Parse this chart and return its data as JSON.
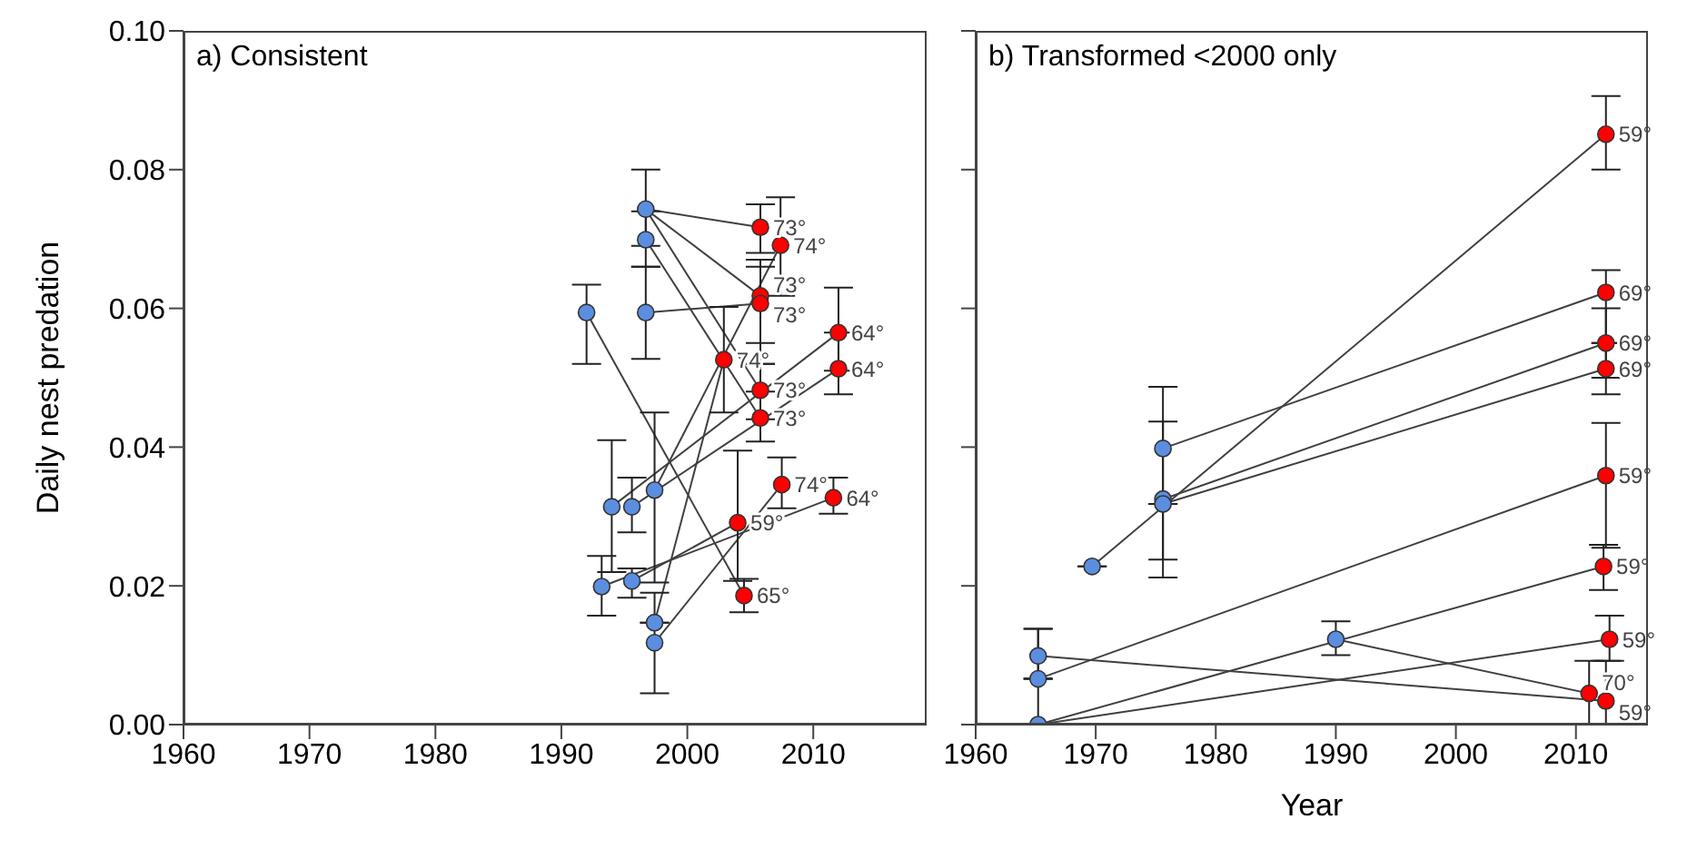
{
  "chart_data": [
    {
      "type": "scatter",
      "title": "a) Consistent",
      "ylabel": "Daily nest predation",
      "xlim": [
        1960,
        2019
      ],
      "xticks": [
        1960,
        1970,
        1980,
        1990,
        2000,
        2010
      ],
      "ylim": [
        0,
        0.1
      ],
      "yticks": [
        {
          "value": 0,
          "label": "0.00"
        },
        {
          "value": 0.02,
          "label": "0.02"
        },
        {
          "value": 0.04,
          "label": "0.04"
        },
        {
          "value": 0.06,
          "label": "0.06"
        },
        {
          "value": 0.08,
          "label": "0.08"
        },
        {
          "value": 0.1,
          "label": "0.10"
        }
      ],
      "series": [
        {
          "type": "line",
          "color": "#404040",
          "x": [
            1992,
            2004.5
          ],
          "values": [
            0.0594,
            0.0186
          ]
        },
        {
          "type": "line",
          "color": "#404040",
          "x": [
            1996.7,
            2005.8
          ],
          "values": [
            0.0743,
            0.0717
          ]
        },
        {
          "type": "line",
          "color": "#404040",
          "x": [
            1996.7,
            2005.8
          ],
          "values": [
            0.0743,
            0.0618
          ]
        },
        {
          "type": "line",
          "color": "#404040",
          "x": [
            1996.7,
            2005.8
          ],
          "values": [
            0.0699,
            0.0442
          ]
        },
        {
          "type": "line",
          "color": "#404040",
          "x": [
            1996.7,
            2005.8
          ],
          "values": [
            0.0743,
            0.0482
          ]
        },
        {
          "type": "line",
          "color": "#404040",
          "x": [
            1996.7,
            2005.8
          ],
          "values": [
            0.0594,
            0.0607
          ]
        },
        {
          "type": "line",
          "color": "#404040",
          "x": [
            1997.4,
            2007.4
          ],
          "values": [
            0.0338,
            0.0691
          ]
        },
        {
          "type": "line",
          "color": "#404040",
          "x": [
            1994,
            2012
          ],
          "values": [
            0.0314,
            0.0565
          ]
        },
        {
          "type": "line",
          "color": "#404040",
          "x": [
            1995.6,
            2012
          ],
          "values": [
            0.0314,
            0.0513
          ]
        },
        {
          "type": "line",
          "color": "#404040",
          "x": [
            1997.4,
            2002.9
          ],
          "values": [
            0.0147,
            0.0526
          ]
        },
        {
          "type": "line",
          "color": "#404040",
          "x": [
            1997.4,
            2007.5
          ],
          "values": [
            0.0118,
            0.0346
          ]
        },
        {
          "type": "line",
          "color": "#404040",
          "x": [
            1993.2,
            2011.6
          ],
          "values": [
            0.0199,
            0.0327
          ]
        },
        {
          "type": "line",
          "color": "#404040",
          "x": [
            1995.6,
            2004
          ],
          "values": [
            0.0207,
            0.0291
          ]
        },
        {
          "type": "scatter",
          "color": "#5b8ee0",
          "x": [
            1992,
            1996.7,
            1996.7,
            1996.7,
            1994,
            1995.6,
            1997.4,
            1993.2,
            1995.6,
            1997.4,
            1997.4
          ],
          "values": [
            0.0594,
            0.0743,
            0.0699,
            0.0594,
            0.0314,
            0.0314,
            0.0338,
            0.0199,
            0.0207,
            0.0147,
            0.0118
          ],
          "errors": [
            [
              0.052,
              0.0634
            ],
            [
              0.069,
              0.08
            ],
            [
              0.066,
              0.074
            ],
            [
              0.0527,
              0.066
            ],
            [
              0.022,
              0.041
            ],
            [
              0.0277,
              0.0356
            ],
            [
              0.0205,
              0.045
            ],
            [
              0.0157,
              0.0243
            ],
            [
              0.0183,
              0.0225
            ],
            null,
            [
              0.0045,
              0.019
            ]
          ]
        },
        {
          "type": "scatter",
          "color": "#ff0000",
          "x": [
            2005.8,
            2007.4,
            2005.8,
            2005.8,
            2002.9,
            2012,
            2012,
            2005.8,
            2005.8,
            2007.5,
            2011.6,
            2004,
            2004.5
          ],
          "values": [
            0.0717,
            0.0691,
            0.0618,
            0.0607,
            0.0526,
            0.0565,
            0.0513,
            0.0482,
            0.0442,
            0.0346,
            0.0327,
            0.0291,
            0.0186
          ],
          "errors": [
            [
              0.068,
              0.075
            ],
            [
              0.0618,
              0.076
            ],
            [
              0.055,
              0.067
            ],
            [
              0.052,
              0.066
            ],
            [
              0.045,
              0.0602
            ],
            [
              0.051,
              0.063
            ],
            [
              0.0476,
              0.0565
            ],
            [
              0.044,
              0.052
            ],
            [
              0.0408,
              0.048
            ],
            [
              0.0312,
              0.0385
            ],
            [
              0.0304,
              0.0356
            ],
            [
              0.0207,
              0.0395
            ],
            [
              0.0162,
              0.021
            ]
          ]
        }
      ],
      "annotations": [
        {
          "text": "73°",
          "x": 2005.8,
          "y": 0.0717
        },
        {
          "text": "74°",
          "x": 2007.4,
          "y": 0.0691
        },
        {
          "text": "73°",
          "x": 2005.8,
          "y": 0.0618
        },
        {
          "text": "73°",
          "x": 2005.8,
          "y": 0.0607
        },
        {
          "text": "74°",
          "x": 2002.9,
          "y": 0.0526
        },
        {
          "text": "64°",
          "x": 2012,
          "y": 0.0565
        },
        {
          "text": "64°",
          "x": 2012,
          "y": 0.0513
        },
        {
          "text": "73°",
          "x": 2005.8,
          "y": 0.0482
        },
        {
          "text": "73°",
          "x": 2005.8,
          "y": 0.0442
        },
        {
          "text": "74°",
          "x": 2007.5,
          "y": 0.0346
        },
        {
          "text": "64°",
          "x": 2011.6,
          "y": 0.0327
        },
        {
          "text": "59°",
          "x": 2004,
          "y": 0.0291
        },
        {
          "text": "65°",
          "x": 2004.5,
          "y": 0.0186
        }
      ]
    },
    {
      "type": "scatter",
      "title": "b) Transformed <2000 only",
      "xlabel": "Year",
      "xlim": [
        1960,
        2016
      ],
      "xticks": [
        1960,
        1970,
        1980,
        1990,
        2000,
        2010
      ],
      "ylim": [
        0,
        0.1
      ],
      "yticks": [
        {
          "value": 0,
          "label": null
        },
        {
          "value": 0.02,
          "label": null
        },
        {
          "value": 0.04,
          "label": null
        },
        {
          "value": 0.06,
          "label": null
        },
        {
          "value": 0.08,
          "label": null
        },
        {
          "value": 0.1,
          "label": null
        }
      ],
      "tick_labels": "x",
      "series": [
        {
          "type": "line",
          "color": "#404040",
          "x": [
            1969.7,
            2012.5
          ],
          "values": [
            0.0228,
            0.0851
          ]
        },
        {
          "type": "line",
          "color": "#404040",
          "x": [
            1975.6,
            2012.5
          ],
          "values": [
            0.0398,
            0.0623
          ]
        },
        {
          "type": "line",
          "color": "#404040",
          "x": [
            1975.6,
            2012.5
          ],
          "values": [
            0.0325,
            0.055
          ]
        },
        {
          "type": "line",
          "color": "#404040",
          "x": [
            1975.6,
            2012.5
          ],
          "values": [
            0.0318,
            0.0513
          ]
        },
        {
          "type": "line",
          "color": "#404040",
          "x": [
            1965.2,
            2012.5
          ],
          "values": [
            0.0066,
            0.0359
          ]
        },
        {
          "type": "line",
          "color": "#404040",
          "x": [
            1965.2,
            2012.3
          ],
          "values": [
            0,
            0.0228
          ]
        },
        {
          "type": "line",
          "color": "#404040",
          "x": [
            1965.2,
            2012.8
          ],
          "values": [
            0,
            0.0123
          ]
        },
        {
          "type": "line",
          "color": "#404040",
          "x": [
            1990,
            2011.1
          ],
          "values": [
            0.0123,
            0.0045
          ]
        },
        {
          "type": "line",
          "color": "#404040",
          "x": [
            1965.2,
            2012.5
          ],
          "values": [
            0.0099,
            0.0034
          ]
        },
        {
          "type": "scatter",
          "color": "#5b8ee0",
          "x": [
            1969.7,
            1975.6,
            1975.6,
            1975.6,
            1965.2,
            1965.2,
            1965.2,
            1990
          ],
          "values": [
            0.0228,
            0.0398,
            0.0325,
            0.0318,
            0.0099,
            0.0066,
            0,
            0.0123
          ],
          "errors": [
            null,
            [
              0.0212,
              0.0487
            ],
            [
              0.0238,
              0.0437
            ],
            null,
            [
              0.0066,
              0.0138
            ],
            null,
            [
              0,
              0.0138
            ],
            [
              0.01,
              0.0149
            ]
          ]
        },
        {
          "type": "scatter",
          "color": "#ff0000",
          "x": [
            2012.5,
            2012.5,
            2012.5,
            2012.5,
            2012.5,
            2012.3,
            2012.8,
            2011.1,
            2012.5
          ],
          "values": [
            0.0851,
            0.0623,
            0.055,
            0.0513,
            0.0359,
            0.0228,
            0.0123,
            0.0045,
            0.0034
          ],
          "errors": [
            [
              0.08,
              0.0906
            ],
            [
              0.055,
              0.0655
            ],
            [
              0.05,
              0.06
            ],
            [
              0.0476,
              0.055
            ],
            [
              0.0255,
              0.0435
            ],
            [
              0.0194,
              0.0259
            ],
            [
              0.0092,
              0.0157
            ],
            [
              0,
              0.0092
            ],
            [
              0,
              0.0092
            ]
          ]
        }
      ],
      "annotations": [
        {
          "text": "59°",
          "x": 2012.5,
          "y": 0.0851
        },
        {
          "text": "69°",
          "x": 2012.5,
          "y": 0.0623
        },
        {
          "text": "69°",
          "x": 2012.5,
          "y": 0.055
        },
        {
          "text": "69°",
          "x": 2012.5,
          "y": 0.0513
        },
        {
          "text": "59°",
          "x": 2012.5,
          "y": 0.0359
        },
        {
          "text": "59°",
          "x": 2012.3,
          "y": 0.0228
        },
        {
          "text": "59°",
          "x": 2012.8,
          "y": 0.0123
        },
        {
          "text": "70°",
          "x": 2011.1,
          "y": 0.0045
        },
        {
          "text": "59°",
          "x": 2012.5,
          "y": 0.0034
        }
      ]
    }
  ]
}
